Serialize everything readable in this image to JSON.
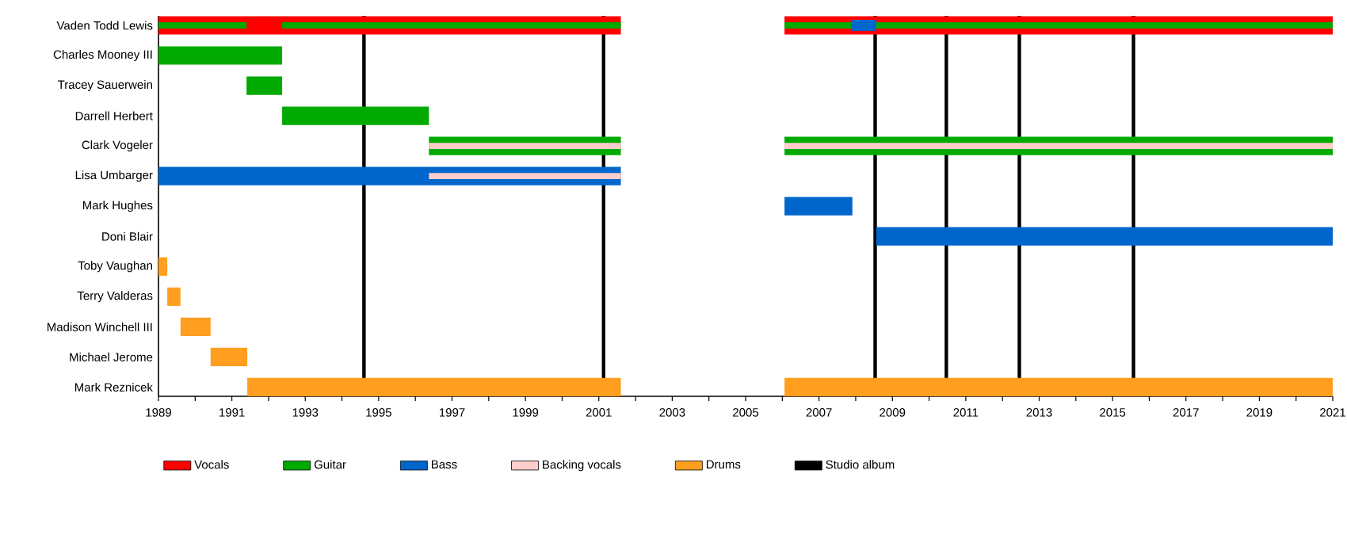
{
  "chart_data": {
    "type": "bar",
    "orientation": "horizontal",
    "legend": "bottom",
    "categories": [
      "Vaden Todd Lewis",
      "Charles Mooney III",
      "Tracey Sauerwein",
      "Darrell Herbert",
      "Clark Vogeler",
      "Lisa Umbarger",
      "Mark Hughes",
      "Doni Blair",
      "Toby Vaughan",
      "Terry Valderas",
      "Madison Winchell III",
      "Michael Jerome",
      "Mark Reznicek"
    ],
    "xlim": [
      1989,
      2021
    ],
    "xticks": [
      1989,
      1991,
      1993,
      1995,
      1997,
      1999,
      2001,
      2003,
      2005,
      2007,
      2009,
      2011,
      2013,
      2015,
      2017,
      2019,
      2021
    ],
    "series": [
      {
        "name": "Vocals",
        "color": "#ff0000",
        "values": [
          12.6,
          null,
          null,
          null,
          null,
          null,
          null,
          null,
          null,
          null,
          null,
          null,
          null
        ],
        "base": [
          1989,
          null,
          null,
          null,
          null,
          null,
          null,
          null,
          null,
          null,
          null,
          null,
          null
        ]
      },
      {
        "color": "#ff0000",
        "values": [
          14.94,
          null,
          null,
          null,
          null,
          null,
          null,
          null,
          null,
          null,
          null,
          null,
          null
        ],
        "base": [
          2006.06,
          null,
          null,
          null,
          null,
          null,
          null,
          null,
          null,
          null,
          null,
          null,
          null
        ]
      },
      {
        "name": "Guitar",
        "color": "#00aa00",
        "values": [
          2.4,
          3.37,
          0.97,
          4.0,
          5.23,
          null,
          null,
          null,
          null,
          null,
          null,
          null,
          null
        ],
        "base": [
          1989,
          1989,
          1991.4,
          1992.37,
          1996.37,
          null,
          null,
          null,
          null,
          null,
          null,
          null,
          null
        ]
      },
      {
        "color": "#00aa00",
        "values": [
          9.23,
          null,
          null,
          null,
          14.94,
          null,
          null,
          null,
          null,
          null,
          null,
          null,
          null
        ],
        "base": [
          1992.37,
          null,
          null,
          null,
          2006.06,
          null,
          null,
          null,
          null,
          null,
          null,
          null,
          null
        ]
      },
      {
        "color": "#00aa00",
        "values": [
          14.94,
          null,
          null,
          null,
          null,
          null,
          null,
          null,
          null,
          null,
          null,
          null,
          null
        ],
        "base": [
          2006.06,
          null,
          null,
          null,
          null,
          null,
          null,
          null,
          null,
          null,
          null,
          null,
          null
        ]
      },
      {
        "name": "Bass",
        "color": "#0066cc",
        "values": [
          0.68,
          null,
          null,
          null,
          null,
          12.6,
          1.85,
          12.44,
          null,
          null,
          null,
          null,
          null
        ],
        "base": [
          2007.88,
          null,
          null,
          null,
          null,
          1989,
          2006.06,
          2008.56,
          null,
          null,
          null,
          null,
          null
        ]
      },
      {
        "name": "Backing vocals",
        "color": "#ffcccc",
        "values": [
          null,
          null,
          null,
          null,
          5.23,
          5.23,
          null,
          null,
          null,
          null,
          null,
          null,
          null
        ],
        "base": [
          null,
          null,
          null,
          null,
          1996.37,
          1996.37,
          null,
          null,
          null,
          null,
          null,
          null,
          null
        ]
      },
      {
        "color": "#ffcccc",
        "values": [
          null,
          null,
          null,
          null,
          14.94,
          null,
          null,
          null,
          null,
          null,
          null,
          null,
          null
        ],
        "base": [
          null,
          null,
          null,
          null,
          2006.06,
          null,
          null,
          null,
          null,
          null,
          null,
          null,
          null
        ]
      },
      {
        "name": "Drums",
        "color": "#ff9e1f",
        "values": [
          null,
          null,
          null,
          null,
          null,
          null,
          null,
          null,
          0.24,
          0.36,
          0.82,
          1.0,
          10.18
        ],
        "base": [
          null,
          null,
          null,
          null,
          null,
          null,
          null,
          null,
          1989,
          1989.24,
          1989.6,
          1990.42,
          1991.42
        ]
      },
      {
        "color": "#ff9e1f",
        "values": [
          null,
          null,
          null,
          null,
          null,
          null,
          null,
          null,
          null,
          null,
          null,
          null,
          14.94
        ],
        "base": [
          null,
          null,
          null,
          null,
          null,
          null,
          null,
          null,
          null,
          null,
          null,
          null,
          2006.06
        ]
      }
    ],
    "ref_lines": [
      {
        "axis": "x",
        "value": 1994.6,
        "color": "#000000",
        "label": "Studio album"
      },
      {
        "axis": "x",
        "value": 2001.13,
        "color": "#000000"
      },
      {
        "axis": "x",
        "value": 2008.53,
        "color": "#000000"
      },
      {
        "axis": "x",
        "value": 2010.47,
        "color": "#000000"
      },
      {
        "axis": "x",
        "value": 2012.46,
        "color": "#000000"
      },
      {
        "axis": "x",
        "value": 2015.57,
        "color": "#000000"
      }
    ]
  }
}
